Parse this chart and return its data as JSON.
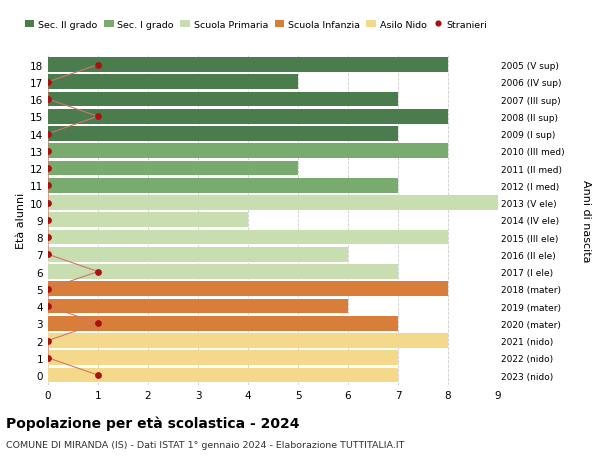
{
  "ages": [
    18,
    17,
    16,
    15,
    14,
    13,
    12,
    11,
    10,
    9,
    8,
    7,
    6,
    5,
    4,
    3,
    2,
    1,
    0
  ],
  "right_labels": [
    "2005 (V sup)",
    "2006 (IV sup)",
    "2007 (III sup)",
    "2008 (II sup)",
    "2009 (I sup)",
    "2010 (III med)",
    "2011 (II med)",
    "2012 (I med)",
    "2013 (V ele)",
    "2014 (IV ele)",
    "2015 (III ele)",
    "2016 (II ele)",
    "2017 (I ele)",
    "2018 (mater)",
    "2019 (mater)",
    "2020 (mater)",
    "2021 (nido)",
    "2022 (nido)",
    "2023 (nido)"
  ],
  "bar_values": [
    8,
    5,
    7,
    8,
    7,
    8,
    5,
    7,
    9,
    4,
    8,
    6,
    7,
    8,
    6,
    7,
    8,
    7,
    7
  ],
  "bar_colors": [
    "#4a7c4e",
    "#4a7c4e",
    "#4a7c4e",
    "#4a7c4e",
    "#4a7c4e",
    "#7aab6e",
    "#7aab6e",
    "#7aab6e",
    "#c8ddb0",
    "#c8ddb0",
    "#c8ddb0",
    "#c8ddb0",
    "#c8ddb0",
    "#d97e3a",
    "#d97e3a",
    "#d97e3a",
    "#f5d98b",
    "#f5d98b",
    "#f5d98b"
  ],
  "stranieri_values": [
    1,
    0,
    0,
    1,
    0,
    0,
    0,
    0,
    0,
    0,
    0,
    0,
    1,
    0,
    0,
    1,
    0,
    0,
    1
  ],
  "stranieri_color": "#aa1111",
  "stranieri_line_color": "#cc7766",
  "legend_items": [
    {
      "label": "Sec. II grado",
      "color": "#4a7c4e"
    },
    {
      "label": "Sec. I grado",
      "color": "#7aab6e"
    },
    {
      "label": "Scuola Primaria",
      "color": "#c8ddb0"
    },
    {
      "label": "Scuola Infanzia",
      "color": "#d97e3a"
    },
    {
      "label": "Asilo Nido",
      "color": "#f5d98b"
    },
    {
      "label": "Stranieri",
      "color": "#aa1111"
    }
  ],
  "ylabel": "Età alunni",
  "right_ylabel": "Anni di nascita",
  "xlim_max": 9,
  "title": "Popolazione per età scolastica - 2024",
  "subtitle": "COMUNE DI MIRANDA (IS) - Dati ISTAT 1° gennaio 2024 - Elaborazione TUTTITALIA.IT",
  "grid_color": "#cccccc",
  "bar_height": 0.85,
  "background_color": "#ffffff",
  "fig_width": 6.0,
  "fig_height": 4.6,
  "fig_dpi": 100
}
